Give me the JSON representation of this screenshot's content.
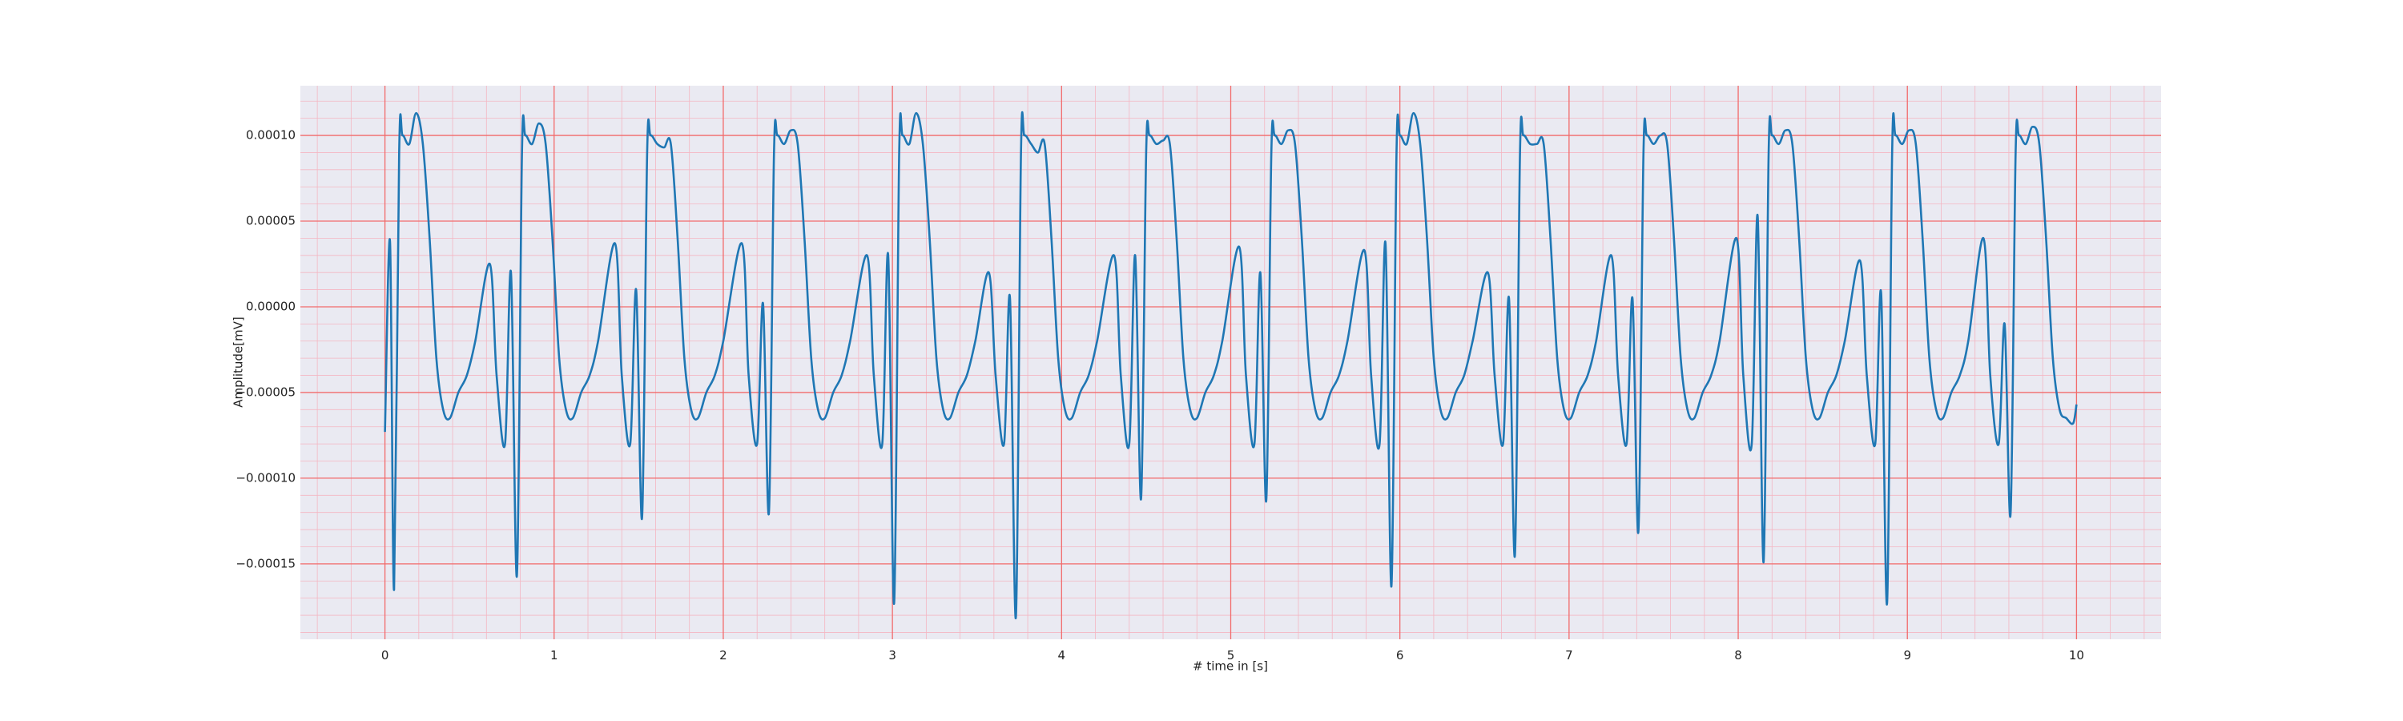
{
  "chart_data": {
    "type": "line",
    "xlabel": "# time in [s]",
    "ylabel": "Amplitude[mV]",
    "color": "#1f77b4",
    "xlim": [
      -0.5,
      10.5
    ],
    "ylim": [
      -0.000194,
      0.000129
    ],
    "xticks": [
      0,
      1,
      2,
      3,
      4,
      5,
      6,
      7,
      8,
      9,
      10
    ],
    "yticks": [
      {
        "value": -0.00015,
        "label": "−0.00015"
      },
      {
        "value": -0.0001,
        "label": "−0.00010"
      },
      {
        "value": -5e-05,
        "label": "−0.00005"
      },
      {
        "value": 0,
        "label": "0.00000"
      },
      {
        "value": 5e-05,
        "label": "0.00005"
      },
      {
        "value": 0.0001,
        "label": "0.00010"
      }
    ],
    "grid": true,
    "minor_xticks": [
      -0.4,
      -0.2,
      0.2,
      0.4,
      0.6,
      0.8,
      1.2,
      1.4,
      1.6,
      1.8,
      2.2,
      2.4,
      2.6,
      2.8,
      3.2,
      3.4,
      3.6,
      3.8,
      4.2,
      4.4,
      4.6,
      4.8,
      5.2,
      5.4,
      5.6,
      5.8,
      6.2,
      6.4,
      6.6,
      6.8,
      7.2,
      7.4,
      7.6,
      7.8,
      8.2,
      8.4,
      8.6,
      8.8,
      9.2,
      9.4,
      9.6,
      9.8,
      10.2,
      10.4
    ],
    "minor_yticks": [
      -0.00019,
      -0.00018,
      -0.00017,
      -0.00016,
      -0.00014,
      -0.00013,
      -0.00012,
      -0.00011,
      -9e-05,
      -8e-05,
      -7e-05,
      -6e-05,
      -4e-05,
      -3e-05,
      -2e-05,
      -1e-05,
      1e-05,
      2e-05,
      3e-05,
      4e-05,
      6e-05,
      7e-05,
      8e-05,
      9e-05,
      0.00011,
      0.00012
    ],
    "x": [
      0,
      0.03,
      0.054,
      0.084,
      0.104,
      0.144,
      0.184,
      0.224,
      0.264,
      0.304,
      0.344,
      0.384,
      0.434,
      0.484,
      0.534,
      0.62,
      0.66,
      0.71,
      0.745,
      0.78,
      0.81,
      0.83,
      0.87,
      0.91,
      0.95,
      0.99,
      1.03,
      1.07,
      1.11,
      1.16,
      1.21,
      1.26,
      1.36,
      1.4,
      1.45,
      1.485,
      1.52,
      1.55,
      1.57,
      1.61,
      1.65,
      1.69,
      1.73,
      1.77,
      1.81,
      1.85,
      1.9,
      1.95,
      2.0,
      2.11,
      2.15,
      2.2,
      2.235,
      2.27,
      2.3,
      2.32,
      2.36,
      2.4,
      2.44,
      2.48,
      2.52,
      2.56,
      2.6,
      2.65,
      2.7,
      2.75,
      2.85,
      2.89,
      2.94,
      2.975,
      3.01,
      3.04,
      3.06,
      3.1,
      3.14,
      3.18,
      3.22,
      3.26,
      3.3,
      3.34,
      3.39,
      3.44,
      3.49,
      3.57,
      3.61,
      3.66,
      3.695,
      3.73,
      3.76,
      3.78,
      3.82,
      3.86,
      3.9,
      3.94,
      3.98,
      4.02,
      4.06,
      4.11,
      4.16,
      4.21,
      4.31,
      4.35,
      4.4,
      4.435,
      4.47,
      4.5,
      4.52,
      4.56,
      4.6,
      4.64,
      4.68,
      4.72,
      4.76,
      4.8,
      4.85,
      4.9,
      4.95,
      5.05,
      5.09,
      5.14,
      5.175,
      5.21,
      5.24,
      5.26,
      5.3,
      5.34,
      5.38,
      5.42,
      5.46,
      5.5,
      5.54,
      5.59,
      5.64,
      5.69,
      5.79,
      5.83,
      5.88,
      5.915,
      5.95,
      5.98,
      6.0,
      6.04,
      6.08,
      6.12,
      6.16,
      6.2,
      6.24,
      6.28,
      6.33,
      6.38,
      6.43,
      6.52,
      6.56,
      6.61,
      6.645,
      6.68,
      6.71,
      6.73,
      6.77,
      6.81,
      6.85,
      6.89,
      6.93,
      6.97,
      7.01,
      7.06,
      7.11,
      7.16,
      7.25,
      7.29,
      7.34,
      7.375,
      7.41,
      7.44,
      7.46,
      7.5,
      7.54,
      7.58,
      7.62,
      7.66,
      7.7,
      7.74,
      7.79,
      7.84,
      7.89,
      7.99,
      8.03,
      8.08,
      8.115,
      8.15,
      8.18,
      8.2,
      8.24,
      8.28,
      8.32,
      8.36,
      8.4,
      8.44,
      8.48,
      8.53,
      8.58,
      8.63,
      8.72,
      8.76,
      8.81,
      8.845,
      8.88,
      8.91,
      8.93,
      8.97,
      9.01,
      9.05,
      9.09,
      9.13,
      9.17,
      9.21,
      9.26,
      9.31,
      9.36,
      9.45,
      9.49,
      9.54,
      9.575,
      9.61,
      9.64,
      9.66,
      9.7,
      9.74,
      9.78,
      9.82,
      9.86,
      9.9,
      9.94,
      9.98,
      10.0
    ],
    "values": [
      -7.3e-05,
      3.8e-05,
      -0.000165,
      9e-05,
      0.0001,
      9.5e-05,
      0.000113,
      9.5e-05,
      4e-05,
      -3e-05,
      -6e-05,
      -6.5e-05,
      -5e-05,
      -4e-05,
      -2e-05,
      2.5e-05,
      -4e-05,
      -8e-05,
      2e-05,
      -0.000157,
      9e-05,
      0.0001,
      9.5e-05,
      0.000107,
      9.5e-05,
      4e-05,
      -3e-05,
      -6e-05,
      -6.5e-05,
      -5e-05,
      -4e-05,
      -2e-05,
      3.7e-05,
      -4e-05,
      -8e-05,
      1e-05,
      -0.000123,
      9e-05,
      0.0001,
      9.5e-05,
      9.3e-05,
      9.5e-05,
      4e-05,
      -3e-05,
      -6e-05,
      -6.5e-05,
      -5e-05,
      -4e-05,
      -2e-05,
      3.7e-05,
      -4e-05,
      -8e-05,
      2e-06,
      -0.00012,
      9e-05,
      0.0001,
      9.5e-05,
      0.000103,
      9.5e-05,
      4e-05,
      -3e-05,
      -6e-05,
      -6.5e-05,
      -5e-05,
      -4e-05,
      -2e-05,
      3e-05,
      -4e-05,
      -8e-05,
      3e-05,
      -0.000173,
      9e-05,
      0.0001,
      9.5e-05,
      0.000113,
      9.5e-05,
      4e-05,
      -3e-05,
      -6e-05,
      -6.5e-05,
      -5e-05,
      -4e-05,
      -2e-05,
      2e-05,
      -4e-05,
      -8e-05,
      5e-06,
      -0.000181,
      9e-05,
      0.0001,
      9.5e-05,
      9e-05,
      9.5e-05,
      4e-05,
      -3e-05,
      -6e-05,
      -6.5e-05,
      -5e-05,
      -4e-05,
      -2e-05,
      3e-05,
      -4e-05,
      -8e-05,
      3e-05,
      -0.000112,
      9e-05,
      0.0001,
      9.5e-05,
      9.7e-05,
      9.5e-05,
      4e-05,
      -3e-05,
      -6e-05,
      -6.5e-05,
      -5e-05,
      -4e-05,
      -2e-05,
      3.5e-05,
      -4e-05,
      -8e-05,
      2e-05,
      -0.000113,
      9e-05,
      0.0001,
      9.5e-05,
      0.000103,
      9.5e-05,
      4e-05,
      -3e-05,
      -6e-05,
      -6.5e-05,
      -5e-05,
      -4e-05,
      -2e-05,
      3.3e-05,
      -4e-05,
      -8e-05,
      3.7e-05,
      -0.000163,
      9e-05,
      0.0001,
      9.5e-05,
      0.000113,
      9.5e-05,
      4e-05,
      -3e-05,
      -6e-05,
      -6.5e-05,
      -5e-05,
      -4e-05,
      -2e-05,
      2e-05,
      -4e-05,
      -8e-05,
      5e-06,
      -0.000145,
      9e-05,
      0.0001,
      9.5e-05,
      9.5e-05,
      9.5e-05,
      4e-05,
      -3e-05,
      -6e-05,
      -6.5e-05,
      -5e-05,
      -4e-05,
      -2e-05,
      3e-05,
      -4e-05,
      -8e-05,
      5e-06,
      -0.000131,
      9e-05,
      0.0001,
      9.5e-05,
      0.0001,
      9.5e-05,
      4e-05,
      -3e-05,
      -6e-05,
      -6.5e-05,
      -5e-05,
      -4e-05,
      -2e-05,
      4e-05,
      -4e-05,
      -8e-05,
      5.3e-05,
      -0.000149,
      9e-05,
      0.0001,
      9.5e-05,
      0.000103,
      9.5e-05,
      4e-05,
      -3e-05,
      -6e-05,
      -6.5e-05,
      -5e-05,
      -4e-05,
      -2e-05,
      2.7e-05,
      -4e-05,
      -8e-05,
      8e-06,
      -0.000173,
      9e-05,
      0.0001,
      9.5e-05,
      0.000103,
      9.5e-05,
      4e-05,
      -3e-05,
      -6e-05,
      -6.5e-05,
      -5e-05,
      -4e-05,
      -2e-05,
      4e-05,
      -4e-05,
      -8e-05,
      -1e-05,
      -0.000121,
      9e-05,
      0.0001,
      9.5e-05,
      0.000105,
      9.5e-05,
      4e-05,
      -3e-05,
      -6e-05,
      -6.5e-05,
      -6.8e-05,
      -5.7e-05
    ]
  }
}
